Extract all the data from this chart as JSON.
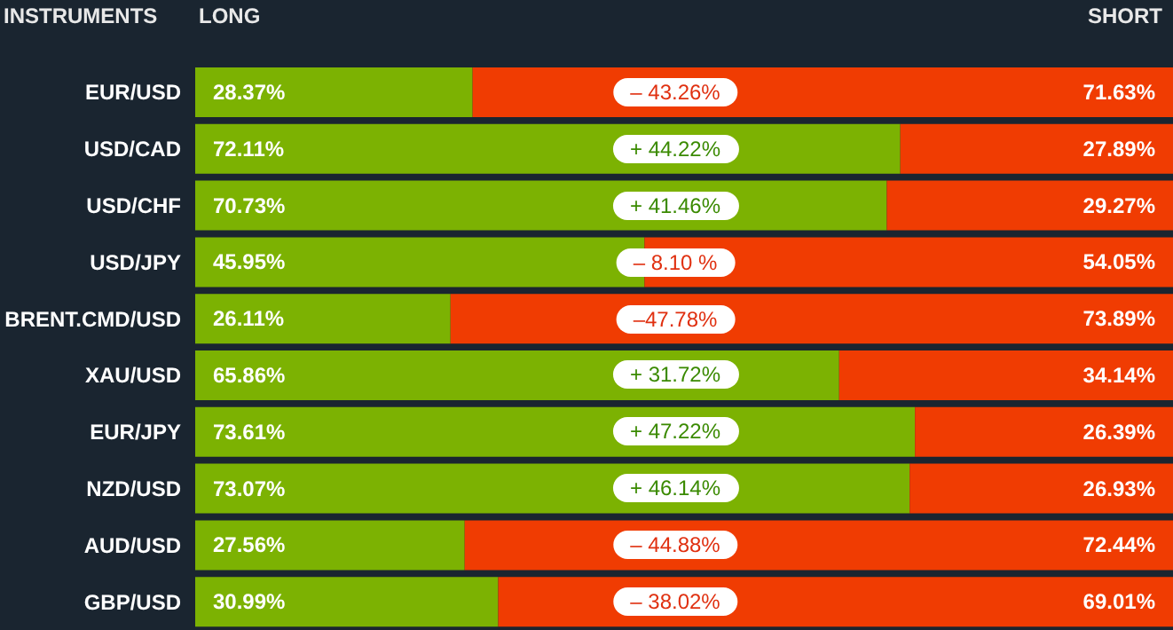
{
  "chart_data": {
    "type": "bar",
    "orientation": "horizontal",
    "stacked": true,
    "ylabel": "INSTRUMENTS",
    "categories": [
      "EUR/USD",
      "USD/CAD",
      "USD/CHF",
      "USD/JPY",
      "BRENT.CMD/USD",
      "XAU/USD",
      "EUR/JPY",
      "NZD/USD",
      "AUD/USD",
      "GBP/USD"
    ],
    "series": [
      {
        "name": "LONG",
        "color": "#7cb202",
        "values": [
          28.37,
          72.11,
          70.73,
          45.95,
          26.11,
          65.86,
          73.61,
          73.07,
          27.56,
          30.99
        ],
        "value_labels": [
          "28.37%",
          "72.11%",
          "70.73%",
          "45.95%",
          "26.11%",
          "65.86%",
          "73.61%",
          "73.07%",
          "27.56%",
          "30.99%"
        ]
      },
      {
        "name": "SHORT",
        "color": "#f03c02",
        "values": [
          71.63,
          27.89,
          29.27,
          54.05,
          73.89,
          34.14,
          26.39,
          26.93,
          72.44,
          69.01
        ],
        "value_labels": [
          "71.63%",
          "27.89%",
          "29.27%",
          "54.05%",
          "73.89%",
          "34.14%",
          "26.39%",
          "26.93%",
          "72.44%",
          "69.01%"
        ]
      }
    ],
    "annotations": [
      "– 43.26%",
      "+ 44.22%",
      "+ 41.46%",
      "– 8.10 %",
      "–47.78%",
      "+ 31.72%",
      "+ 47.22%",
      "+ 46.14%",
      "– 44.88%",
      "– 38.02%"
    ],
    "xlim": [
      0,
      100
    ],
    "tick_labels": "y",
    "legend": "top"
  }
}
